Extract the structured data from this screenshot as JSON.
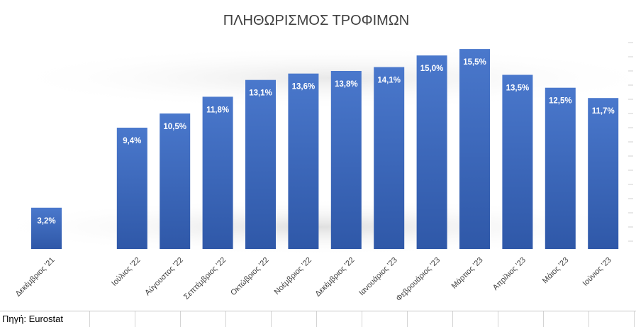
{
  "chart_data": {
    "type": "bar",
    "title": "ΠΛΗΘΩΡΙΣΜΟΣ ΤΡΟΦΙΜΩΝ",
    "categories": [
      "Δεκέμβριος '21",
      "",
      "Ιούλιος '22",
      "Αύγουστος '22",
      "Σεπτέμβριος '22",
      "Οκτώβριος '22",
      "Νοέμβριος '22",
      "Δεκέμβριος '22",
      "Ιανουάριος '23",
      "Φεβρουάριος '23",
      "Μάρτιος '23",
      "Απρίλιος '23",
      "Μάιος '23",
      "Ιούνιος '23"
    ],
    "values": [
      3.2,
      null,
      9.4,
      10.5,
      11.8,
      13.1,
      13.6,
      13.8,
      14.1,
      15.0,
      15.5,
      13.5,
      12.5,
      11.7
    ],
    "data_labels": [
      "3,2%",
      "",
      "9,4%",
      "10,5%",
      "11,8%",
      "13,1%",
      "13,6%",
      "13,8%",
      "14,1%",
      "15,0%",
      "15,5%",
      "13,5%",
      "12,5%",
      "11,7%"
    ],
    "xlabel": "",
    "ylabel": "",
    "ylim": [
      0,
      16
    ],
    "grid": false,
    "legend": "none",
    "bar_color_top": "#4472C4",
    "bar_color_bottom": "#2F5597"
  },
  "source": {
    "label": "Πηγή: Eurostat"
  }
}
